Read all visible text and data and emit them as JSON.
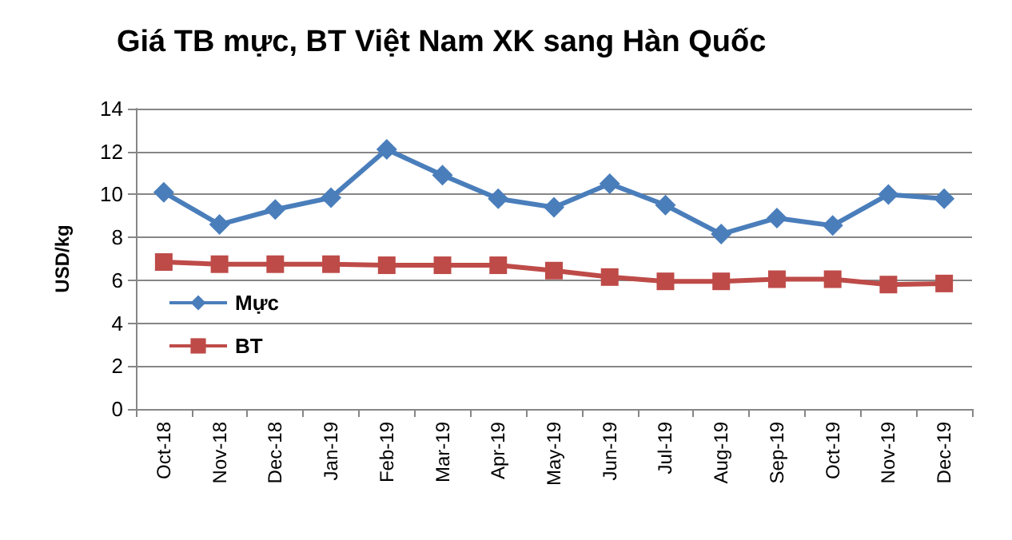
{
  "chart_data": {
    "type": "line",
    "title": "Giá TB mực, BT Việt Nam XK sang Hàn Quốc",
    "ylabel": "USD/kg",
    "categories": [
      "Oct-18",
      "Nov-18",
      "Dec-18",
      "Jan-19",
      "Feb-19",
      "Mar-19",
      "Apr-19",
      "May-19",
      "Jun-19",
      "Jul-19",
      "Aug-19",
      "Sep-19",
      "Oct-19",
      "Nov-19",
      "Dec-19"
    ],
    "series": [
      {
        "name": "Mực",
        "color": "#4a7ebb",
        "marker": "diamond",
        "values": [
          10.1,
          8.6,
          9.3,
          9.85,
          12.1,
          10.9,
          9.8,
          9.4,
          10.5,
          9.5,
          8.15,
          8.9,
          8.55,
          10.0,
          9.8
        ]
      },
      {
        "name": "BT",
        "color": "#be4b48",
        "marker": "square",
        "values": [
          6.85,
          6.75,
          6.75,
          6.75,
          6.7,
          6.7,
          6.7,
          6.45,
          6.15,
          5.95,
          5.95,
          6.05,
          6.05,
          5.8,
          5.85
        ]
      }
    ],
    "ylim": [
      0,
      14
    ],
    "yticks": [
      0,
      2,
      4,
      6,
      8,
      10,
      12,
      14
    ],
    "grid": "y",
    "legend": "left"
  }
}
